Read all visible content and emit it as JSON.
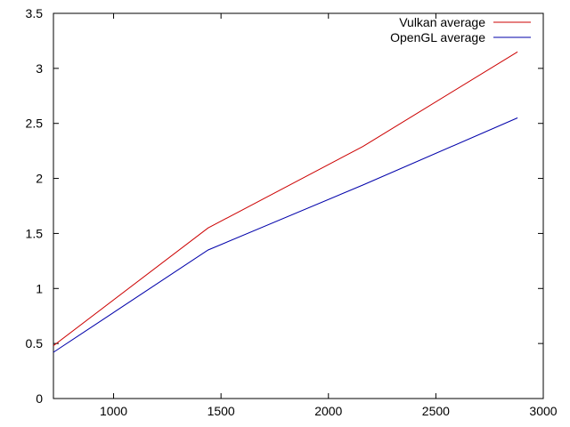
{
  "chart_data": {
    "type": "line",
    "title": "",
    "xlabel": "",
    "ylabel": "",
    "xlim": [
      720,
      3000
    ],
    "ylim": [
      0,
      3.5
    ],
    "x_ticks": [
      1000,
      1500,
      2000,
      2500,
      3000
    ],
    "x_tick_labels": [
      "1000",
      "1500",
      "2000",
      "2500",
      "3000"
    ],
    "y_ticks": [
      0,
      0.5,
      1,
      1.5,
      2,
      2.5,
      3,
      3.5
    ],
    "y_tick_labels": [
      "0",
      "0.5",
      "1",
      "1.5",
      "2",
      "2.5",
      "3",
      "3.5"
    ],
    "grid": false,
    "legend_position": "top-right",
    "series": [
      {
        "name": "Vulkan average",
        "color": "#cc0000",
        "x": [
          720,
          1440,
          2160,
          2880
        ],
        "y": [
          0.48,
          1.55,
          2.29,
          3.15
        ]
      },
      {
        "name": "OpenGL average",
        "color": "#0000aa",
        "x": [
          720,
          1440,
          2160,
          2880
        ],
        "y": [
          0.42,
          1.35,
          1.94,
          2.55
        ]
      }
    ]
  }
}
